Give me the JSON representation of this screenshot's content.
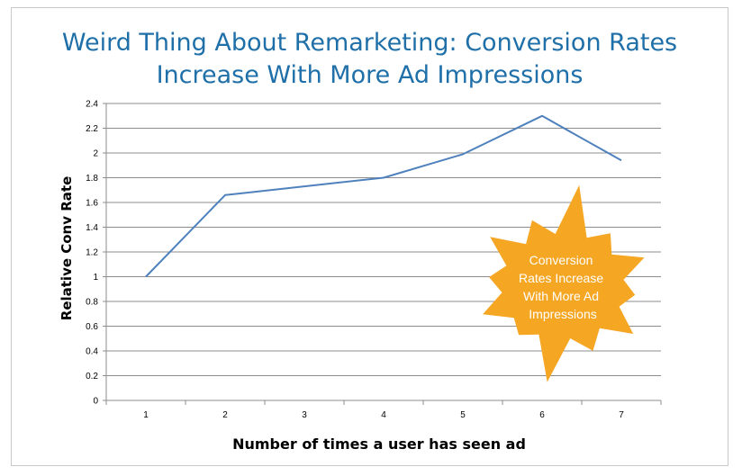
{
  "chart_data": {
    "type": "line",
    "title_lines": [
      "Weird Thing About Remarketing: Conversion Rates",
      "Increase With More Ad Impressions"
    ],
    "xlabel": "Number of times a user has seen ad",
    "ylabel": "Relative Conv Rate",
    "x": [
      1,
      2,
      3,
      4,
      5,
      6,
      7
    ],
    "x_tick_labels": [
      "1",
      "2",
      "3",
      "4",
      "5",
      "6",
      "7"
    ],
    "y_ticks": [
      "0",
      "0.2",
      "0.4",
      "0.6",
      "0.8",
      "1",
      "1.2",
      "1.4",
      "1.6",
      "1.8",
      "2",
      "2.2",
      "2.4"
    ],
    "ylim": [
      0,
      2.4
    ],
    "series": [
      {
        "values": [
          1.0,
          1.66,
          1.73,
          1.8,
          1.99,
          2.3,
          1.94
        ],
        "color": "#4f81bd"
      }
    ],
    "grid": "horizontal",
    "annotation": {
      "shape": "starburst",
      "color": "#f5a623",
      "lines": [
        "Conversion",
        "Rates Increase",
        "With More Ad",
        "Impressions"
      ]
    }
  }
}
